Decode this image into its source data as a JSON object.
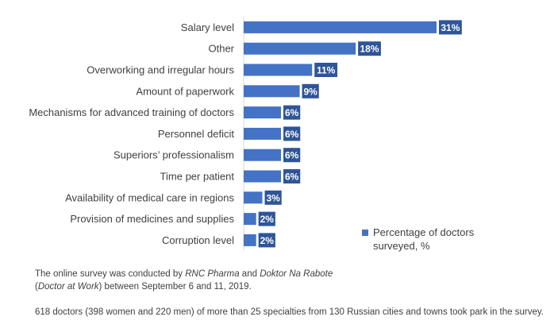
{
  "chart_data": {
    "type": "bar",
    "orientation": "horizontal",
    "categories": [
      "Salary level",
      "Other",
      "Overworking and irregular hours",
      "Amount of paperwork",
      "Mechanisms for advanced training of doctors",
      "Personnel deficit",
      "Superiors’ professionalism",
      "Time per patient",
      "Availability of medical care in regions",
      "Provision of medicines and supplies",
      "Corruption level"
    ],
    "series": [
      {
        "name": "Percentage of doctors surveyed, %",
        "values": [
          31,
          18,
          11,
          9,
          6,
          6,
          6,
          6,
          3,
          2,
          2
        ],
        "labels": [
          "31%",
          "18%",
          "11%",
          "9%",
          "6%",
          "6%",
          "6%",
          "6%",
          "3%",
          "2%",
          "2%"
        ]
      }
    ],
    "xlim": [
      0,
      31
    ],
    "grid": false,
    "legend_position": "bottom-right",
    "colors": {
      "bar": "#4472C4",
      "label_bg": "#2E5597"
    }
  },
  "footnotes": {
    "p1_a": "The online survey was conducted by ",
    "p1_b": "RNC Pharma",
    "p1_c": " and ",
    "p1_d": "Doktor Na Rabote",
    "p1_e": "(",
    "p1_f": "Doctor at Work",
    "p1_g": ") between September 6 and 11, 2019.",
    "p2": "618 doctors (398 women and 220 men) of more than 25 specialties from 130 Russian cities and towns took park in the survey."
  }
}
